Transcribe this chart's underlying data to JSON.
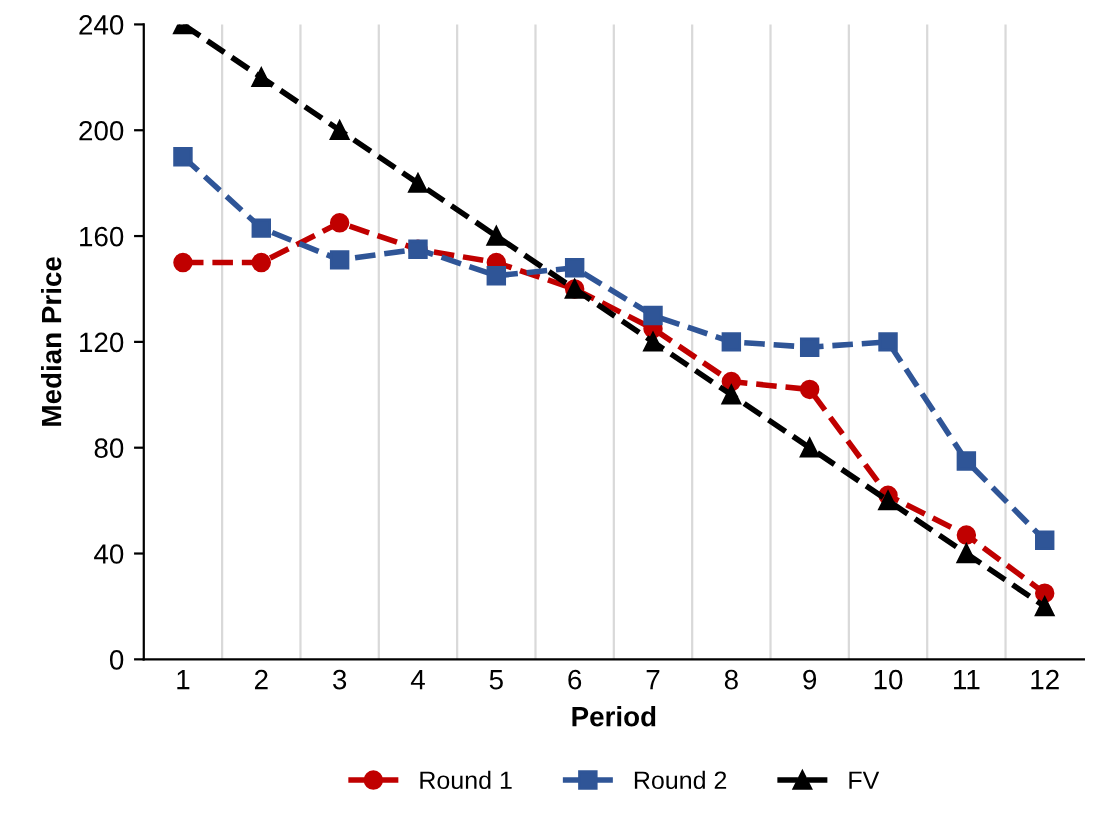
{
  "chart_data": {
    "type": "line",
    "xlabel": "Period",
    "ylabel": "Median Price",
    "categories": [
      "1",
      "2",
      "3",
      "4",
      "5",
      "6",
      "7",
      "8",
      "9",
      "10",
      "11",
      "12"
    ],
    "series": [
      {
        "name": "Round 1",
        "color": "#c00000",
        "marker": "circle",
        "line_style": "dashed",
        "values": [
          150,
          150,
          165,
          155,
          150,
          140,
          125,
          105,
          102,
          62,
          47,
          25
        ]
      },
      {
        "name": "Round 2",
        "color": "#2f5597",
        "marker": "square",
        "line_style": "dashed",
        "values": [
          190,
          163,
          151,
          155,
          145,
          148,
          130,
          120,
          118,
          120,
          75,
          45
        ]
      },
      {
        "name": "FV",
        "color": "#000000",
        "marker": "triangle",
        "line_style": "dashed",
        "values": [
          240,
          220,
          200,
          180,
          160,
          140,
          120,
          100,
          80,
          60,
          40,
          20
        ]
      }
    ],
    "ylim": [
      0,
      240
    ],
    "yticks": [
      0,
      40,
      80,
      120,
      160,
      200,
      240
    ],
    "grid": "x",
    "legend": "bottom"
  }
}
